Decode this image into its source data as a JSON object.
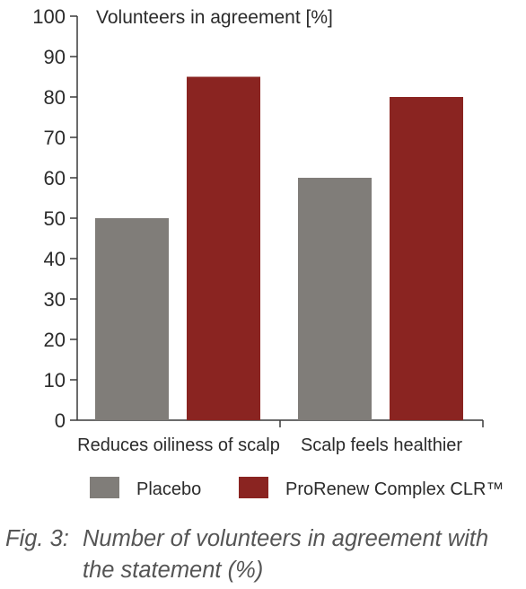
{
  "chart_data": {
    "type": "bar",
    "ylabel": "Volunteers in agreement [%]",
    "xlabel": "",
    "ylim": [
      0,
      100
    ],
    "yticks": [
      0,
      10,
      20,
      30,
      40,
      50,
      60,
      70,
      80,
      90,
      100
    ],
    "categories": [
      "Reduces oiliness of scalp",
      "Scalp feels healthier"
    ],
    "series": [
      {
        "name": "Placebo",
        "color": "#807d79",
        "values": [
          50,
          60
        ]
      },
      {
        "name": "ProRenew Complex CLR™",
        "color": "#8a2421",
        "values": [
          85,
          80
        ]
      }
    ],
    "legend_position": "bottom",
    "grid": false
  },
  "caption": {
    "number": "Fig. 3:",
    "line1": "Number of volunteers in agreement with",
    "line2": "the statement (%)"
  }
}
